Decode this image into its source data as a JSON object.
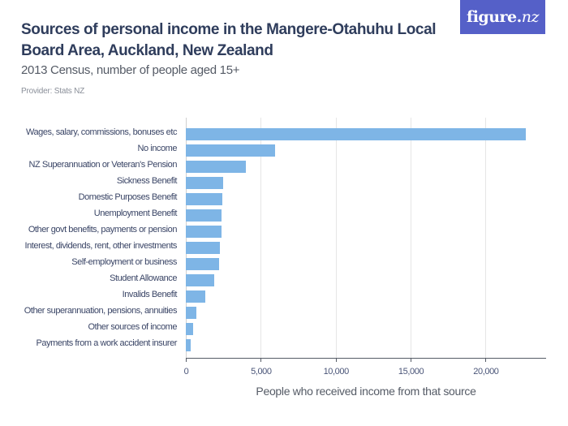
{
  "header": {
    "title": "Sources of personal income in the Mangere-Otahuhu Local Board Area, Auckland, New Zealand",
    "subtitle": "2013 Census, number of people aged 15+",
    "provider": "Provider: Stats NZ",
    "logo_main": "figure.",
    "logo_nz": "nz",
    "logo_color": "#5560c8"
  },
  "chart_data": {
    "type": "bar",
    "orientation": "horizontal",
    "title": "Sources of personal income in the Mangere-Otahuhu Local Board Area, Auckland, New Zealand",
    "subtitle": "2013 Census, number of people aged 15+",
    "xlabel": "People who received income from that source",
    "ylabel": "",
    "xlim": [
      0,
      24000
    ],
    "xticks": [
      0,
      5000,
      10000,
      15000,
      20000
    ],
    "xtick_labels": [
      "0",
      "5,000",
      "10,000",
      "15,000",
      "20,000"
    ],
    "grid": true,
    "bar_color": "#7eb5e6",
    "categories": [
      "Wages, salary, commissions, bonuses etc",
      "No income",
      "NZ Superannuation or Veteran's Pension",
      "Sickness Benefit",
      "Domestic Purposes Benefit",
      "Unemployment Benefit",
      "Other govt benefits, payments or pension",
      "Interest, dividends, rent, other investments",
      "Self-employment or business",
      "Student Allowance",
      "Invalids Benefit",
      "Other superannuation, pensions, annuities",
      "Other sources of income",
      "Payments from a work accident insurer"
    ],
    "values": [
      22700,
      5970,
      3990,
      2490,
      2440,
      2400,
      2380,
      2270,
      2200,
      1880,
      1280,
      690,
      500,
      310
    ]
  }
}
